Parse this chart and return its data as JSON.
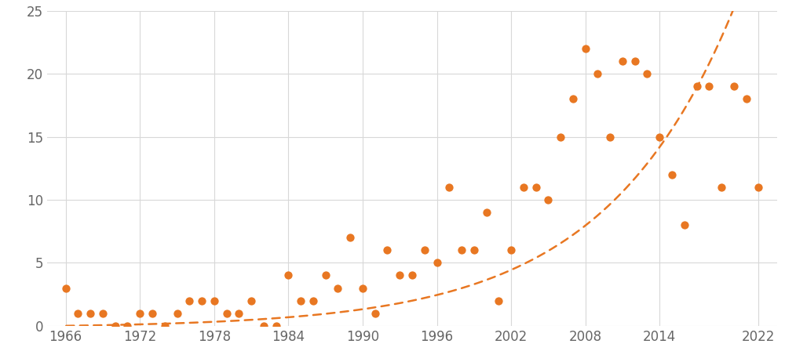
{
  "years": [
    1966,
    1967,
    1968,
    1969,
    1970,
    1971,
    1972,
    1973,
    1974,
    1975,
    1976,
    1977,
    1978,
    1979,
    1980,
    1981,
    1982,
    1983,
    1984,
    1985,
    1986,
    1987,
    1988,
    1989,
    1990,
    1991,
    1992,
    1993,
    1994,
    1995,
    1996,
    1997,
    1998,
    1999,
    2000,
    2001,
    2002,
    2003,
    2004,
    2005,
    2006,
    2007,
    2008,
    2009,
    2010,
    2011,
    2012,
    2013,
    2014,
    2015,
    2016,
    2017,
    2018,
    2019,
    2020,
    2021,
    2022
  ],
  "shootings": [
    3,
    1,
    1,
    1,
    0,
    0,
    1,
    1,
    0,
    1,
    2,
    2,
    2,
    1,
    1,
    2,
    0,
    0,
    4,
    2,
    2,
    4,
    3,
    7,
    3,
    1,
    6,
    4,
    4,
    6,
    5,
    11,
    6,
    6,
    9,
    2,
    6,
    11,
    11,
    10,
    15,
    18,
    22,
    20,
    15,
    21,
    21,
    20,
    15,
    12,
    8,
    19,
    19,
    11,
    19,
    18,
    11
  ],
  "dot_color": "#E87722",
  "trend_color": "#E87722",
  "background_color": "#ffffff",
  "grid_color": "#d8d8d8",
  "tick_color": "#666666",
  "xlim": [
    1964.5,
    2023.5
  ],
  "ylim": [
    0,
    25
  ],
  "yticks": [
    0,
    5,
    10,
    15,
    20,
    25
  ],
  "xticks": [
    1966,
    1972,
    1978,
    1984,
    1990,
    1996,
    2002,
    2008,
    2014,
    2022
  ],
  "figsize": [
    10.0,
    4.62
  ],
  "dpi": 100,
  "trend_x0": 1966,
  "trend_a": 0.15,
  "trend_b": 0.095,
  "trend_c": -0.15
}
